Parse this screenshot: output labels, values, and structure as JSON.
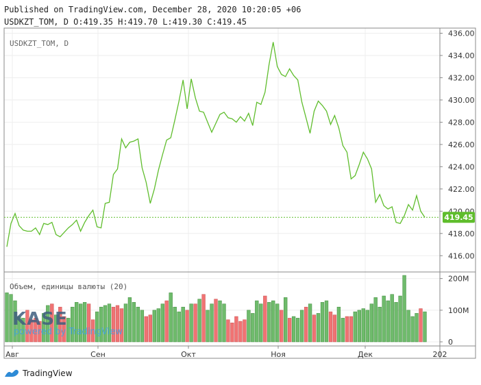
{
  "header": {
    "published_line": "Published on TradingView.com, December 28, 2020 10:20:05 +06",
    "ohlc_line": "USDKZT_TOM, D O:419.35 H:419.70 L:419.30 C:419.45"
  },
  "footer": {
    "brand": "TradingView"
  },
  "watermark": {
    "logo_text": "KASE",
    "powered_text": "powered by TradingView"
  },
  "colors": {
    "line": "#5fbd2c",
    "vol_up": "#6fbb6c",
    "vol_down": "#f07373",
    "last_price_badge": "#5fbd2c",
    "grid": "#eeeeee",
    "border": "#888888"
  },
  "chart_data": [
    {
      "type": "line",
      "symbol_label": "USDKZT_TOM, D",
      "y_ticks": [
        "416.00",
        "418.00",
        "420.00",
        "422.00",
        "424.00",
        "426.00",
        "428.00",
        "430.00",
        "432.00",
        "434.00",
        "436.00"
      ],
      "ylim": [
        414.6,
        436.4
      ],
      "x_ticks": [
        "Авг",
        "Сен",
        "Окт",
        "Ноя",
        "Дек",
        "202"
      ],
      "last_price": 419.45,
      "last_price_label": "419.45",
      "values": [
        416.8,
        418.9,
        419.8,
        418.7,
        418.3,
        418.2,
        418.2,
        418.5,
        417.9,
        418.9,
        418.8,
        419.0,
        417.9,
        417.7,
        418.1,
        418.5,
        418.8,
        419.2,
        418.2,
        419.0,
        419.6,
        420.1,
        418.6,
        418.5,
        420.7,
        420.8,
        423.3,
        423.8,
        426.5,
        425.7,
        426.2,
        426.3,
        426.5,
        423.9,
        422.6,
        420.7,
        422.0,
        423.7,
        425.1,
        426.4,
        426.6,
        428.2,
        429.9,
        431.8,
        429.2,
        431.9,
        430.2,
        429.0,
        428.9,
        428.0,
        427.1,
        427.9,
        428.7,
        428.9,
        428.4,
        428.3,
        428.0,
        428.5,
        428.1,
        428.8,
        427.7,
        429.8,
        429.6,
        430.7,
        433.2,
        435.2,
        433.0,
        432.3,
        432.1,
        432.8,
        432.2,
        431.8,
        429.8,
        428.4,
        427.0,
        429.0,
        429.9,
        429.5,
        429.0,
        427.8,
        428.6,
        427.5,
        425.9,
        425.3,
        422.9,
        423.2,
        424.2,
        425.3,
        424.7,
        423.8,
        420.8,
        421.5,
        420.5,
        420.2,
        420.4,
        419.0,
        418.9,
        419.6,
        420.6,
        420.1,
        421.4,
        420.0,
        419.45
      ]
    },
    {
      "type": "bar",
      "title": "Объем, единицы валюты (20)",
      "y_ticks": [
        "0",
        "100M",
        "200M"
      ],
      "ylim": [
        0,
        210
      ],
      "values": [
        155,
        150,
        130,
        80,
        75,
        100,
        70,
        75,
        65,
        90,
        115,
        120,
        85,
        110,
        80,
        75,
        110,
        125,
        120,
        125,
        120,
        70,
        95,
        110,
        115,
        120,
        110,
        115,
        105,
        120,
        140,
        125,
        110,
        100,
        80,
        85,
        100,
        105,
        120,
        130,
        155,
        110,
        95,
        110,
        100,
        120,
        120,
        135,
        150,
        100,
        120,
        135,
        130,
        120,
        70,
        60,
        80,
        65,
        70,
        100,
        90,
        130,
        120,
        145,
        125,
        130,
        120,
        100,
        140,
        75,
        80,
        75,
        100,
        110,
        120,
        85,
        90,
        125,
        130,
        95,
        85,
        110,
        75,
        80,
        80,
        95,
        100,
        105,
        100,
        120,
        140,
        110,
        145,
        130,
        150,
        125,
        145,
        210,
        100,
        80,
        90,
        105,
        95
      ],
      "down": [
        0,
        0,
        0,
        0,
        0,
        1,
        1,
        1,
        1,
        0,
        0,
        1,
        0,
        1,
        1,
        0,
        0,
        0,
        0,
        0,
        1,
        1,
        0,
        0,
        0,
        0,
        1,
        1,
        1,
        0,
        0,
        0,
        0,
        0,
        1,
        1,
        0,
        0,
        0,
        1,
        0,
        0,
        0,
        0,
        1,
        0,
        1,
        0,
        1,
        0,
        0,
        1,
        0,
        0,
        1,
        1,
        1,
        1,
        1,
        0,
        0,
        0,
        0,
        1,
        0,
        0,
        0,
        1,
        0,
        1,
        0,
        0,
        0,
        1,
        0,
        1,
        0,
        0,
        0,
        1,
        1,
        0,
        0,
        1,
        1,
        0,
        0,
        0,
        0,
        0,
        0,
        0,
        0,
        0,
        0,
        0,
        0,
        0,
        0,
        0,
        0,
        1,
        0
      ]
    }
  ]
}
